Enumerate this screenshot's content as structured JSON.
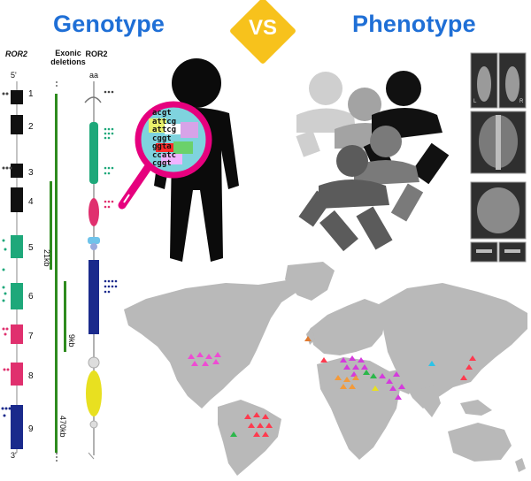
{
  "header": {
    "genotype": "Genotype",
    "vs": "VS",
    "phenotype": "Phenotype"
  },
  "gene_panel": {
    "gene_label": "ROR2",
    "deletions_label": "Exonic\ndeletions",
    "protein_label": "ROR2",
    "five_prime": "5'",
    "three_prime": "3'",
    "aa_label": "aa",
    "exons": [
      "1",
      "2",
      "3",
      "4",
      "5",
      "6",
      "7",
      "8",
      "9"
    ],
    "deletion_sizes": [
      "21kb",
      "9kb",
      "470kb"
    ]
  },
  "magnifier": {
    "rows": [
      "acgt",
      "attcg",
      "attcg",
      "cggt",
      "ggta",
      "ccatc",
      "cggt"
    ]
  },
  "xray_labels": {
    "left": "L",
    "right": "R"
  },
  "colors": {
    "title_blue": "#1f6fd6",
    "vs_yellow": "#f7c21c",
    "exon_black": "#111111",
    "exon_green": "#1ea87a",
    "exon_pink": "#e0306e",
    "exon_navy": "#1a2a8c",
    "deletion_green": "#2e8b1e",
    "magnifier_pink": "#e6007e",
    "map_gray": "#b9b9b9"
  }
}
